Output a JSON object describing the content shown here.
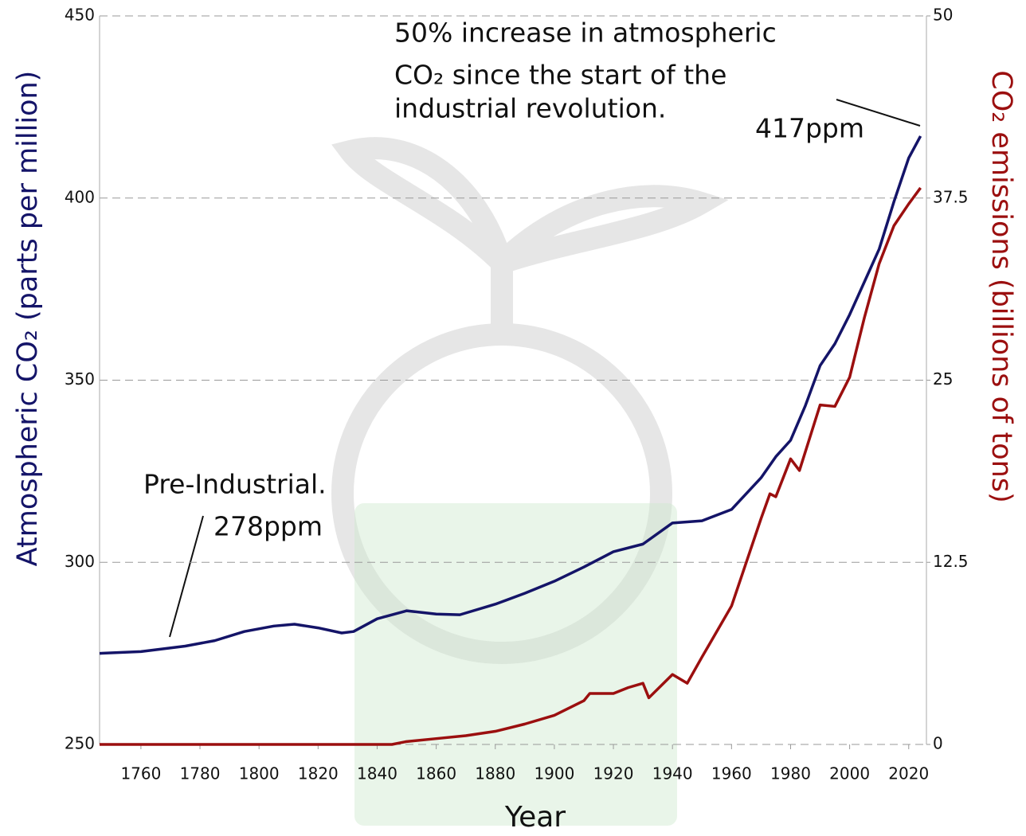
{
  "chart_data": {
    "type": "line",
    "x_label": "Year",
    "y_label": "Atmospheric CO₂ (parts per million)",
    "y2_label": "CO₂ emissions (billions of tons)",
    "xlim": [
      1746,
      2026
    ],
    "xticks": [
      1760,
      1780,
      1800,
      1820,
      1840,
      1860,
      1880,
      1900,
      1920,
      1940,
      1960,
      1980,
      2000,
      2020
    ],
    "ylim": [
      250,
      450
    ],
    "yticks": [
      250,
      300,
      350,
      400,
      450
    ],
    "y2lim": [
      0,
      50
    ],
    "y2ticks": [
      0,
      12.5,
      25,
      37.5,
      50
    ],
    "grid": true,
    "annotations": {
      "increase": [
        "50% increase in atmospheric",
        "CO₂  since the start of the",
        "industrial revolution."
      ],
      "current": "417ppm",
      "pre_industrial": "Pre-Industrial.",
      "pre_value": "278ppm"
    },
    "series": [
      {
        "name": "Atmospheric CO₂",
        "color": "#141468",
        "axis": "y",
        "x": [
          1746,
          1760,
          1775,
          1785,
          1795,
          1805,
          1812,
          1820,
          1828,
          1832,
          1840,
          1850,
          1860,
          1868,
          1880,
          1890,
          1900,
          1910,
          1920,
          1930,
          1940,
          1950,
          1960,
          1970,
          1975,
          1980,
          1985,
          1990,
          1995,
          2000,
          2005,
          2010,
          2015,
          2020,
          2024
        ],
        "values": [
          275,
          275.5,
          277,
          278.5,
          281,
          282.5,
          283,
          282,
          280.6,
          281,
          284.5,
          286.7,
          285.8,
          285.6,
          288.5,
          291.5,
          294.8,
          298.7,
          302.9,
          305,
          310.8,
          311.4,
          314.5,
          323.2,
          329,
          333.5,
          343,
          354,
          360,
          368,
          377,
          386,
          399,
          411,
          417
        ]
      },
      {
        "name": "CO₂ emissions",
        "color": "#9b0f0f",
        "axis": "y2",
        "x": [
          1746,
          1845,
          1850,
          1860,
          1870,
          1880,
          1890,
          1900,
          1910,
          1912,
          1920,
          1925,
          1930,
          1932,
          1940,
          1945,
          1950,
          1960,
          1970,
          1973,
          1975,
          1980,
          1983,
          1990,
          1995,
          2000,
          2005,
          2010,
          2015,
          2020,
          2024
        ],
        "values": [
          0,
          0,
          0.2,
          0.4,
          0.6,
          0.9,
          1.4,
          2.0,
          3.0,
          3.5,
          3.5,
          3.9,
          4.2,
          3.2,
          4.8,
          4.2,
          6.0,
          9.5,
          15.5,
          17.2,
          17.0,
          19.6,
          18.8,
          23.3,
          23.2,
          25.2,
          29.3,
          33.0,
          35.6,
          37.1,
          38.2
        ]
      }
    ]
  }
}
